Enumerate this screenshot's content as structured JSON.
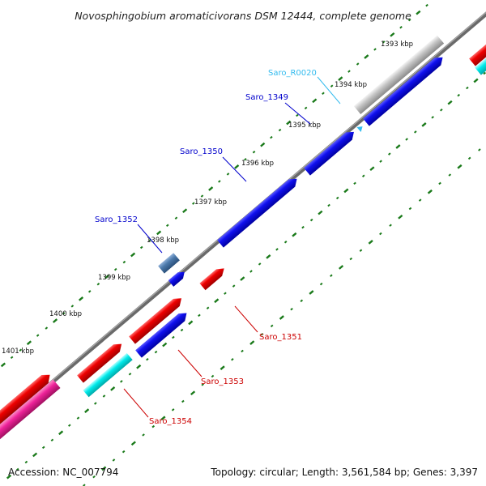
{
  "title": "Novosphingobium aromaticivorans DSM 12444, complete genome",
  "footer": {
    "accession": "Accession: NC_007794",
    "topology": "Topology: circular; Length: 3,561,584 bp; Genes: 3,397"
  },
  "ticks": [
    "1393 kbp",
    "1394 kbp",
    "1395 kbp",
    "1396 kbp",
    "1397 kbp",
    "1398 kbp",
    "1399 kbp",
    "1400 kbp",
    "1401 kbp"
  ],
  "genes": [
    {
      "id": "Saro_R0020",
      "color": "#33bbee"
    },
    {
      "id": "Saro_1349",
      "color": "#0000cc"
    },
    {
      "id": "Saro_1350",
      "color": "#0000cc"
    },
    {
      "id": "Saro_1352",
      "color": "#0000cc"
    },
    {
      "id": "Saro_1351",
      "color": "#cc0000"
    },
    {
      "id": "Saro_1353",
      "color": "#cc0000"
    },
    {
      "id": "Saro_1354",
      "color": "#cc0000"
    }
  ],
  "colors": {
    "backbone": "#777777",
    "tick_marks": "#1a7a1a",
    "forward_strand": "#0000ee",
    "reverse_strand": "#ee0000",
    "gc_cyan": "#00e5e5",
    "gc_pink": "#e61e8c",
    "gc_gray": "#b0b0b0"
  }
}
